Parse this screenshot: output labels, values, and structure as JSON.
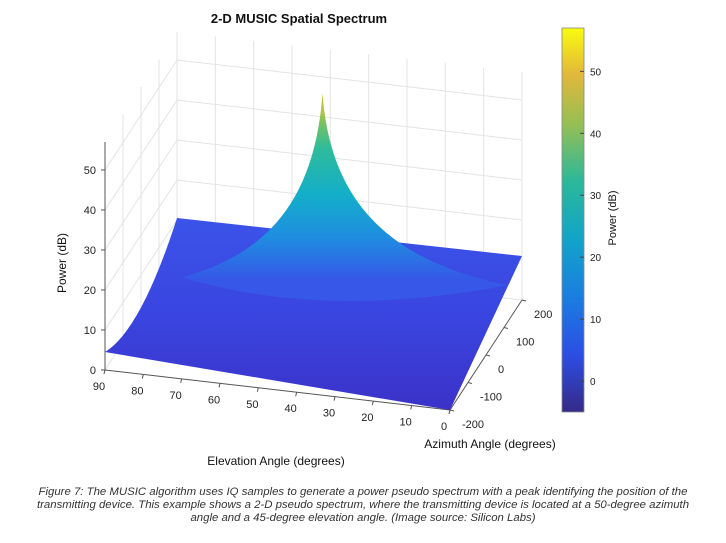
{
  "chart_data": {
    "type": "surface",
    "title": "2-D MUSIC Spatial Spectrum",
    "xlabel": "Azimuth Angle (degrees)",
    "ylabel": "Elevation Angle (degrees)",
    "zlabel": "Power (dB)",
    "x_ticks": [
      "-200",
      "-100",
      "0",
      "100",
      "200"
    ],
    "y_ticks": [
      "0",
      "10",
      "20",
      "30",
      "40",
      "50",
      "60",
      "70",
      "80",
      "90"
    ],
    "z_ticks": [
      "0",
      "10",
      "20",
      "30",
      "40",
      "50"
    ],
    "colorbar": {
      "label": "Power (dB)",
      "ticks": [
        "0",
        "10",
        "20",
        "30",
        "40",
        "50"
      ],
      "range": [
        -5,
        57
      ],
      "colormap": "parula"
    },
    "xlim": [
      -200,
      200
    ],
    "ylim": [
      0,
      90
    ],
    "zlim": [
      0,
      57
    ],
    "peak": {
      "azimuth": 50,
      "elevation": 45,
      "power": 57
    },
    "floor_power": 0,
    "grid": true
  },
  "caption": "Figure 7: The MUSIC algorithm uses IQ samples to generate a power pseudo spectrum with a peak identifying the position of the transmitting device. This example shows a 2-D pseudo spectrum, where the transmitting device is located at a 50-degree azimuth angle and a 45-degree elevation angle. (Image source: Silicon Labs)"
}
